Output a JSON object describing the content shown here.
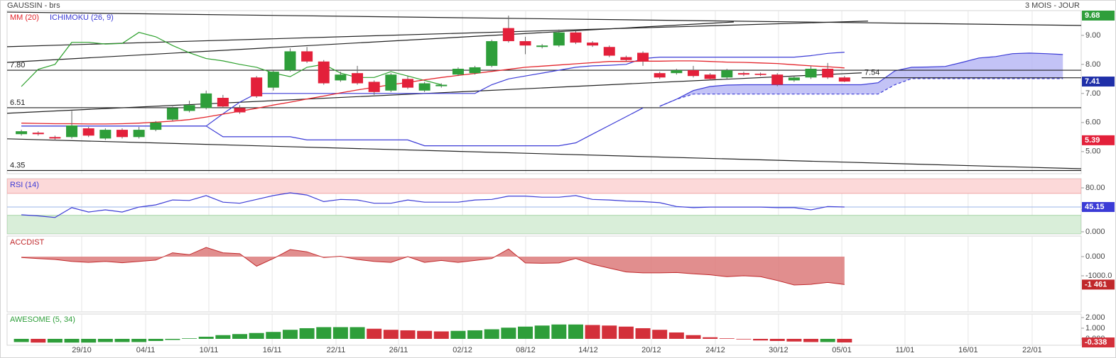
{
  "header": {
    "title": "GAUSSIN - brs",
    "period": "3 MOIS - JOUR"
  },
  "chart_data": [
    {
      "type": "candlestick",
      "xlim": [
        -0.85,
        63.09
      ],
      "ylim": [
        4.24,
        9.85
      ],
      "yticks": [
        {
          "value": 5,
          "label": "5.00"
        },
        {
          "value": 6,
          "label": "6.00"
        },
        {
          "value": 7,
          "label": "7.00"
        },
        {
          "value": 8,
          "label": "8.00"
        },
        {
          "value": 9,
          "label": "9.00"
        }
      ],
      "up_color": "#2e9e3a",
      "down_color": "#e3203a",
      "last_color": "#1f2fa8",
      "open": [
        5.6,
        5.65,
        5.5,
        5.5,
        5.8,
        5.45,
        5.75,
        5.5,
        5.75,
        6.1,
        6.4,
        6.5,
        6.85,
        6.5,
        7.55,
        7.2,
        7.8,
        8.45,
        8.1,
        7.45,
        7.7,
        7.4,
        7.1,
        7.5,
        7.1,
        7.25,
        7.65,
        7.7,
        7.95,
        9.25,
        8.8,
        8.6,
        8.65,
        9.1,
        8.75,
        8.6,
        8.25,
        8.4,
        7.7,
        7.7,
        7.8,
        7.65,
        7.55,
        7.7,
        7.68,
        7.65,
        7.45,
        7.55,
        7.85,
        7.55
      ],
      "high": [
        5.75,
        5.7,
        5.55,
        6.4,
        5.85,
        5.8,
        5.8,
        5.85,
        6.05,
        6.55,
        6.75,
        7.1,
        6.95,
        6.6,
        7.6,
        7.8,
        8.55,
        8.6,
        8.15,
        7.75,
        7.95,
        7.45,
        7.7,
        7.6,
        7.4,
        7.35,
        7.9,
        7.95,
        8.85,
        9.68,
        8.95,
        8.7,
        9.2,
        9.15,
        8.8,
        8.65,
        8.3,
        8.45,
        7.75,
        7.85,
        7.95,
        7.7,
        7.85,
        7.75,
        7.72,
        7.7,
        7.6,
        7.95,
        8.05,
        7.6
      ],
      "low": [
        5.55,
        5.55,
        5.39,
        5.45,
        5.5,
        5.4,
        5.45,
        5.45,
        5.7,
        6.05,
        6.35,
        6.45,
        6.5,
        6.3,
        6.85,
        7.1,
        7.75,
        8.05,
        7.3,
        7.4,
        7.3,
        6.95,
        7.05,
        7.15,
        7.05,
        7.2,
        7.6,
        7.65,
        7.9,
        8.75,
        8.35,
        8.55,
        8.6,
        8.7,
        8.6,
        8.25,
        8.1,
        7.95,
        7.5,
        7.65,
        7.55,
        7.45,
        7.5,
        7.6,
        7.6,
        7.25,
        7.4,
        7.5,
        7.5,
        7.39
      ],
      "close": [
        5.7,
        5.6,
        5.45,
        5.9,
        5.55,
        5.75,
        5.5,
        5.75,
        6.0,
        6.5,
        6.6,
        7.0,
        6.55,
        6.35,
        6.9,
        7.75,
        8.45,
        8.1,
        7.35,
        7.65,
        7.35,
        7.05,
        7.65,
        7.2,
        7.35,
        7.3,
        7.85,
        7.9,
        8.8,
        8.8,
        8.65,
        8.65,
        9.1,
        8.75,
        8.65,
        8.3,
        8.15,
        8.1,
        7.55,
        7.8,
        7.6,
        7.5,
        7.8,
        7.65,
        7.64,
        7.3,
        7.55,
        7.85,
        7.55,
        7.41
      ],
      "series": [
        {
          "name": "MM (20)",
          "color": "#e3242b",
          "values": [
            5.98,
            5.97,
            5.96,
            5.96,
            5.95,
            5.95,
            5.96,
            5.98,
            6.01,
            6.05,
            6.1,
            6.19,
            6.29,
            6.39,
            6.49,
            6.6,
            6.7,
            6.81,
            6.91,
            7.02,
            7.12,
            7.21,
            7.3,
            7.38,
            7.47,
            7.55,
            7.62,
            7.69,
            7.76,
            7.83,
            7.9,
            7.94,
            7.98,
            8.02,
            8.06,
            8.1,
            8.1,
            8.11,
            8.11,
            8.12,
            8.12,
            8.1,
            8.08,
            8.07,
            8.05,
            8.03,
            7.99,
            7.95,
            7.92,
            7.88
          ]
        },
        {
          "name": "ICHIMOKU (26, 9)",
          "color": "#3b3bd6",
          "lines": [
            {
              "values": [
                5.88,
                5.88,
                5.88,
                5.88,
                5.88,
                5.88,
                5.88,
                5.88,
                5.88,
                5.88,
                5.88,
                5.88,
                6.3,
                6.7,
                7.0,
                7.0,
                7.0,
                7.0,
                7.0,
                7.0,
                7.0,
                7.0,
                7.0,
                7.0,
                7.0,
                7.0,
                7.0,
                7.0,
                7.3,
                7.5,
                7.6,
                7.7,
                7.8,
                7.9,
                7.95,
                7.97,
                8.0,
                8.2,
                8.25,
                8.25,
                8.25,
                8.25,
                8.25,
                8.25,
                8.25,
                8.25,
                8.25,
                8.3,
                8.38,
                8.42
              ]
            },
            {
              "values": [
                5.88,
                5.88,
                5.88,
                5.88,
                5.88,
                5.88,
                5.88,
                5.88,
                5.88,
                5.88,
                5.88,
                5.88,
                5.51,
                5.51,
                5.51,
                5.51,
                5.51,
                5.4,
                5.4,
                5.4,
                5.4,
                5.4,
                5.4,
                5.4,
                5.2,
                5.2,
                5.2,
                5.2,
                5.2,
                5.2,
                5.2,
                5.2,
                5.2,
                5.3,
                5.6,
                5.9,
                6.2,
                6.5
              ]
            }
          ],
          "lagging": {
            "color": "#2ca02c",
            "values": [
              7.24,
              7.83,
              8.0,
              8.76,
              8.76,
              8.7,
              8.72,
              9.1,
              8.95,
              8.65,
              8.4,
              8.2,
              8.12,
              8.0,
              7.9,
              7.7,
              7.58,
              7.9,
              8.0,
              7.7,
              7.55,
              7.55,
              7.75,
              7.6,
              7.45,
              7.3
            ]
          },
          "cloud": {
            "fill": "#b4b4f4",
            "x": [
              38,
              39,
              40,
              41,
              42,
              43,
              44,
              45,
              46,
              47,
              48,
              49,
              50,
              51,
              52,
              53,
              54,
              55,
              56,
              57,
              58,
              59,
              60,
              61,
              62
            ],
            "upper": [
              6.56,
              6.8,
              7.1,
              7.24,
              7.29,
              7.3,
              7.3,
              7.3,
              7.3,
              7.3,
              7.3,
              7.3,
              7.3,
              7.37,
              7.78,
              7.9,
              7.91,
              7.93,
              8.07,
              8.22,
              8.27,
              8.37,
              8.39,
              8.37,
              8.34
            ],
            "lower": [
              6.56,
              6.8,
              6.98,
              6.98,
              6.98,
              6.98,
              6.98,
              6.98,
              6.98,
              6.98,
              6.98,
              6.98,
              6.98,
              6.98,
              7.3,
              7.51,
              7.51,
              7.51,
              7.51,
              7.51,
              7.51,
              7.51,
              7.51,
              7.51,
              7.51
            ]
          }
        }
      ],
      "trendlines": [
        {
          "x": [
            -0.85,
            63.09
          ],
          "y": [
            9.8,
            9.34
          ]
        },
        {
          "x": [
            -0.85,
            50.4
          ],
          "y": [
            8.61,
            9.49
          ]
        },
        {
          "x": [
            -0.85,
            42.41
          ],
          "y": [
            8.07,
            9.46
          ]
        },
        {
          "x": [
            -0.85,
            50.02
          ],
          "y": [
            6.32,
            7.71
          ]
        },
        {
          "x": [
            -0.85,
            63.09
          ],
          "y": [
            5.44,
            4.41
          ]
        }
      ],
      "hlines": [
        {
          "value": 7.8,
          "label": "7.80"
        },
        {
          "value": 6.51,
          "label": "6.51"
        },
        {
          "value": 4.35,
          "label": "4.35"
        },
        {
          "value": 7.54,
          "label": "7.54",
          "from": 50.02
        }
      ]
    },
    {
      "type": "oscillator",
      "title": "RSI (14)",
      "color": "#3b3bd6",
      "xlim": [
        -0.85,
        63.09
      ],
      "ylim": [
        -3.9,
        96.8
      ],
      "yticks": [
        {
          "value": 0,
          "label": "0.000"
        },
        {
          "value": 40,
          "label": "40.00"
        },
        {
          "value": 80,
          "label": "80.00"
        }
      ],
      "upper": 70,
      "lower": 30,
      "upper_fill": "#fcd9d9",
      "lower_fill": "#d9eed9",
      "values": [
        31,
        29,
        26,
        44,
        36,
        40,
        36,
        45,
        49,
        58,
        57,
        66,
        54,
        52,
        59,
        66,
        71,
        67,
        55,
        59,
        58,
        52,
        52,
        58,
        54,
        54,
        54,
        58,
        59,
        65,
        65,
        63,
        63,
        66,
        59,
        58,
        56,
        55,
        53,
        46,
        44,
        45,
        45,
        45,
        45,
        44,
        44,
        40,
        46,
        45.15
      ]
    },
    {
      "type": "area",
      "title": "ACCDIST",
      "color": "#c0282b",
      "fill": "#dc7a7a",
      "xlim": [
        -0.85,
        63.09
      ],
      "ylim": [
        -2889,
        1074
      ],
      "yticks": [
        {
          "value": 0,
          "label": "0.000"
        },
        {
          "value": -1000,
          "label": "-1000.0"
        }
      ],
      "values": [
        -50,
        -100,
        -150,
        -250,
        -300,
        -250,
        -320,
        -250,
        -180,
        200,
        100,
        480,
        200,
        150,
        -500,
        -100,
        370,
        250,
        -50,
        20,
        -150,
        -250,
        -300,
        0,
        -300,
        -200,
        -300,
        -200,
        -100,
        400,
        -330,
        -350,
        -330,
        -100,
        -400,
        -600,
        -800,
        -850,
        -850,
        -830,
        -900,
        -950,
        -1050,
        -1000,
        -1050,
        -1250,
        -1480,
        -1450,
        -1350,
        -1461
      ],
      "last_label": "-1 461"
    },
    {
      "type": "bar",
      "title": "AWESOME (5, 34)",
      "color": "#2e9e3a",
      "up_color": "#2e9e3a",
      "down_color": "#d3303a",
      "xlim": [
        -0.85,
        63.09
      ],
      "ylim": [
        -0.6,
        2.33
      ],
      "yticks": [
        {
          "value": 0,
          "label": "0.000"
        },
        {
          "value": 1,
          "label": "1.000"
        },
        {
          "value": 2,
          "label": "2.000"
        }
      ],
      "xticks": [
        {
          "value": 3.59,
          "label": "29/10"
        },
        {
          "value": 7.4,
          "label": "04/11"
        },
        {
          "value": 11.16,
          "label": "10/11"
        },
        {
          "value": 14.93,
          "label": "16/11"
        },
        {
          "value": 18.73,
          "label": "22/11"
        },
        {
          "value": 22.45,
          "label": "26/11"
        },
        {
          "value": 26.26,
          "label": "02/12"
        },
        {
          "value": 30.02,
          "label": "08/12"
        },
        {
          "value": 33.74,
          "label": "14/12"
        },
        {
          "value": 37.5,
          "label": "20/12"
        },
        {
          "value": 41.31,
          "label": "24/12"
        },
        {
          "value": 45.07,
          "label": "30/12"
        },
        {
          "value": 48.84,
          "label": "05/01"
        },
        {
          "value": 52.6,
          "label": "11/01"
        },
        {
          "value": 56.36,
          "label": "16/01"
        },
        {
          "value": 60.17,
          "label": "22/01"
        }
      ],
      "values": [
        -0.3,
        -0.35,
        -0.35,
        -0.35,
        -0.35,
        -0.3,
        -0.3,
        -0.3,
        -0.2,
        -0.1,
        0.05,
        0.2,
        0.35,
        0.45,
        0.55,
        0.65,
        0.85,
        1.0,
        1.1,
        1.1,
        1.1,
        0.95,
        0.85,
        0.8,
        0.75,
        0.7,
        0.75,
        0.8,
        0.9,
        1.05,
        1.15,
        1.25,
        1.35,
        1.35,
        1.3,
        1.25,
        1.15,
        1.0,
        0.85,
        0.6,
        0.35,
        0.15,
        0.05,
        -0.05,
        -0.15,
        -0.2,
        -0.25,
        -0.3,
        -0.3,
        -0.338
      ]
    }
  ]
}
